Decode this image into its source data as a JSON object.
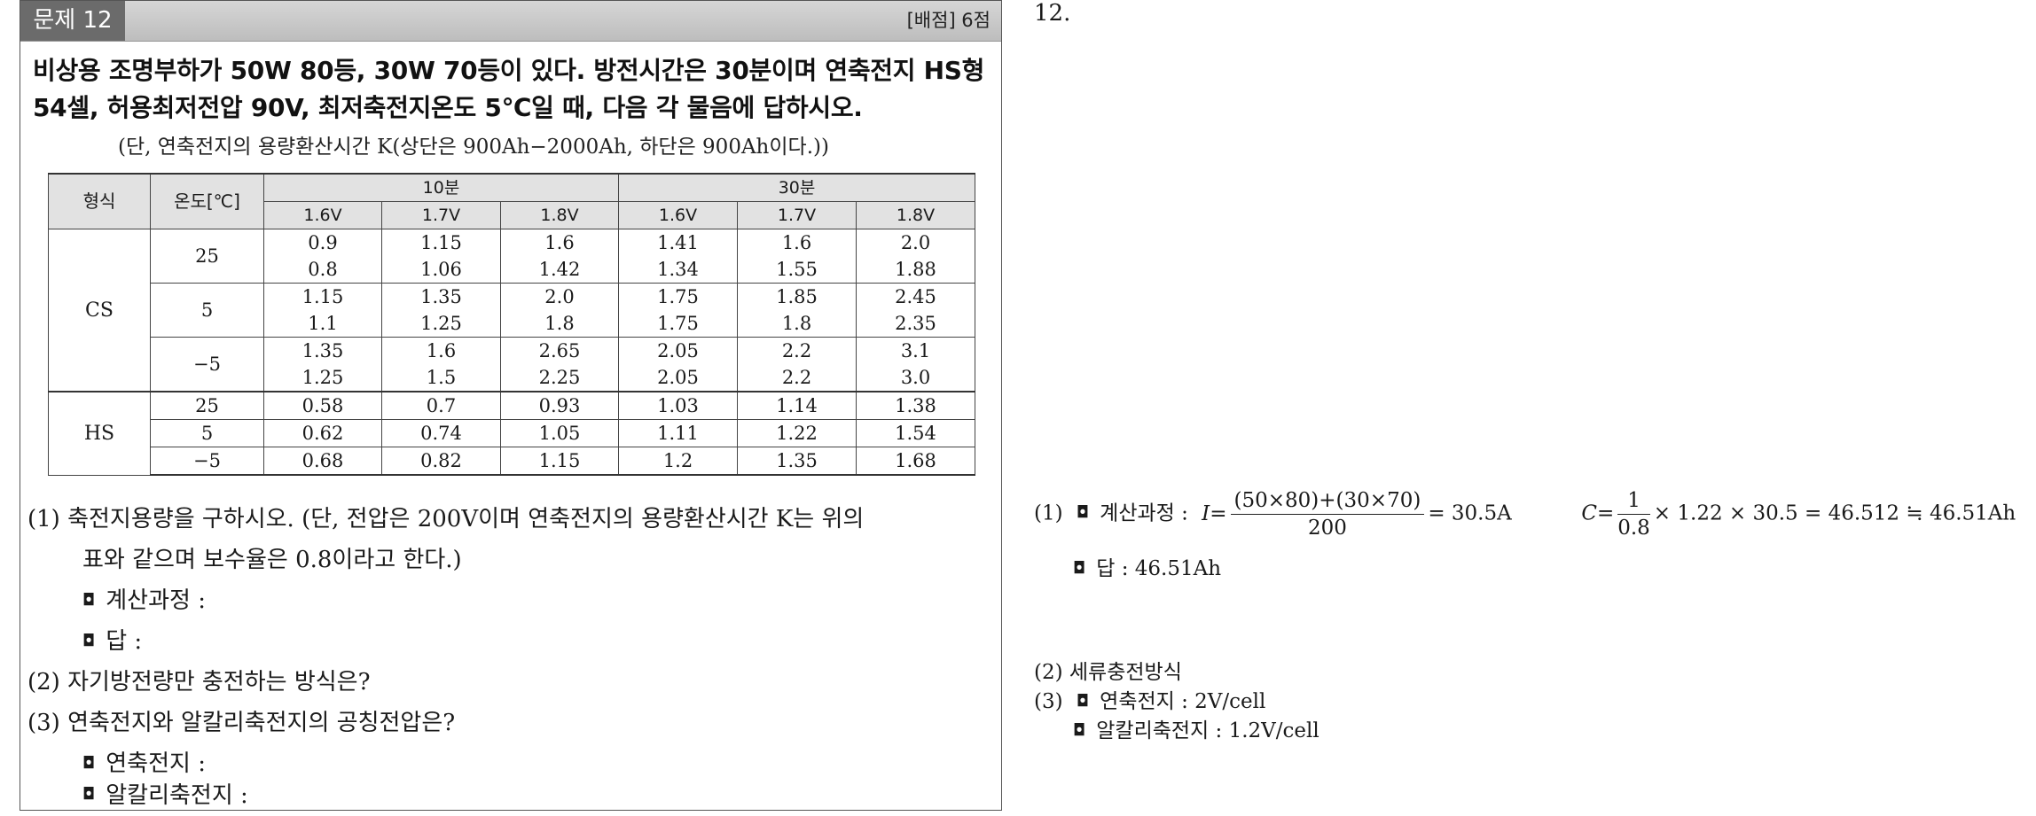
{
  "question": {
    "label": "문제 12",
    "score": "[배점] 6점",
    "stem_line1": "비상용 조명부하가 50W 80등, 30W 70등이 있다. 방전시간은 30분이며 연축전지 HS형",
    "stem_line2": "54셀, 허용최저전압 90V, 최저축전지온도 5℃일 때, 다음 각 물음에 답하시오.",
    "note": "(단, 연축전지의 용량환산시간 K(상단은 900Ah−2000Ah, 하단은 900Ah이다.))"
  },
  "table": {
    "h_type": "형식",
    "h_temp": "온도[℃]",
    "h_10": "10분",
    "h_30": "30분",
    "voltages": [
      "1.6V",
      "1.7V",
      "1.8V",
      "1.6V",
      "1.7V",
      "1.8V"
    ],
    "cs_label": "CS",
    "hs_label": "HS",
    "cs": [
      {
        "temp": "25",
        "top": [
          "0.9",
          "1.15",
          "1.6",
          "1.41",
          "1.6",
          "2.0"
        ],
        "bottom": [
          "0.8",
          "1.06",
          "1.42",
          "1.34",
          "1.55",
          "1.88"
        ]
      },
      {
        "temp": "5",
        "top": [
          "1.15",
          "1.35",
          "2.0",
          "1.75",
          "1.85",
          "2.45"
        ],
        "bottom": [
          "1.1",
          "1.25",
          "1.8",
          "1.75",
          "1.8",
          "2.35"
        ]
      },
      {
        "temp": "−5",
        "top": [
          "1.35",
          "1.6",
          "2.65",
          "2.05",
          "2.2",
          "3.1"
        ],
        "bottom": [
          "1.25",
          "1.5",
          "2.25",
          "2.05",
          "2.2",
          "3.0"
        ]
      }
    ],
    "hs": [
      {
        "temp": "25",
        "values": [
          "0.58",
          "0.7",
          "0.93",
          "1.03",
          "1.14",
          "1.38"
        ]
      },
      {
        "temp": "5",
        "values": [
          "0.62",
          "0.74",
          "1.05",
          "1.11",
          "1.22",
          "1.54"
        ]
      },
      {
        "temp": "−5",
        "values": [
          "0.68",
          "0.82",
          "1.15",
          "1.2",
          "1.35",
          "1.68"
        ]
      }
    ]
  },
  "subq": {
    "q1_line1": "(1) 축전지용량을 구하시오. (단, 전압은 200V이며 연축전지의 용량환산시간 K는 위의",
    "q1_line2": "표와 같으며 보수율은 0.8이라고 한다.)",
    "q1_calc": "계산과정 :",
    "q1_ans": "답 :",
    "q2": "(2) 자기방전량만 충전하는 방식은?",
    "q3": "(3) 연축전지와 알칼리축전지의 공칭전압은?",
    "q3_a": "연축전지 :",
    "q3_b": "알칼리축전지 :"
  },
  "answer": {
    "number": "12.",
    "a1_prefix": "(1)",
    "a1_calc_label": "계산과정 :",
    "a1_I": "I=",
    "a1_I_num": "(50×80)+(30×70)",
    "a1_I_den": "200",
    "a1_I_result": "= 30.5A",
    "a1_C": "C=",
    "a1_C_num": "1",
    "a1_C_den": "0.8",
    "a1_C_result": "× 1.22 × 30.5 = 46.512 ≒ 46.51Ah",
    "a1_ans": "답 : 46.51Ah",
    "a2": "(2) 세류충전방식",
    "a3_prefix": "(3)",
    "a3_lead": "연축전지 : 2V/cell",
    "a3_alk": "알칼리축전지 : 1.2V/cell"
  }
}
